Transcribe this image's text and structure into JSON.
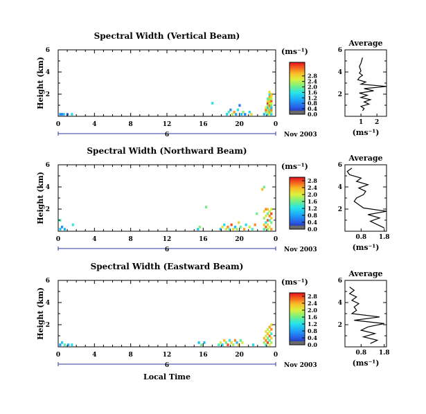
{
  "date_label": "Nov 2003",
  "bottom_xlabel": "Local Time",
  "colorbar_unit": "(ms⁻¹)",
  "chart_data": [
    {
      "type": "heatmap",
      "title": "Spectral Width (Vertical Beam)",
      "ylabel": "Height (km)",
      "xlabel": "",
      "xlim": [
        0,
        24
      ],
      "ylim": [
        0,
        6
      ],
      "xticks": [
        "0",
        "4",
        "8",
        "12",
        "16",
        "20",
        "0"
      ],
      "day_label": "6",
      "yticks": [
        "2",
        "4",
        "6"
      ],
      "colorbar": {
        "unit": "(ms⁻¹)",
        "range": [
          0,
          3.8
        ],
        "ticks": [
          "0.0",
          "0.4",
          "0.8",
          "1.2",
          "1.6",
          "2.0",
          "2.4",
          "2.8"
        ]
      },
      "profile": {
        "title": "Average",
        "xlabel": "(ms⁻¹)",
        "xlim": [
          0,
          2.6
        ],
        "xticks": [
          "1",
          "2"
        ],
        "yticks": [
          "2",
          "4",
          "6"
        ],
        "y": [
          0.5,
          0.7,
          0.9,
          1.1,
          1.3,
          1.5,
          1.7,
          1.9,
          2.1,
          2.3,
          2.5,
          2.7,
          2.9,
          3.1,
          3.3,
          3.5,
          3.7,
          3.9,
          4.1,
          4.5,
          4.8,
          5.3
        ],
        "x": [
          1.1,
          1.2,
          1.0,
          1.5,
          1.2,
          1.6,
          1.0,
          1.4,
          0.9,
          1.8,
          1.2,
          2.6,
          1.0,
          1.3,
          0.8,
          0.9,
          1.1,
          0.9,
          1.0,
          0.9,
          1.0,
          1.1
        ]
      },
      "cells": [
        [
          0.1,
          0.1,
          0.9
        ],
        [
          0.3,
          0.1,
          0.8
        ],
        [
          0.5,
          0.1,
          1.2
        ],
        [
          0.9,
          0.1,
          0.6
        ],
        [
          1.4,
          0.1,
          1.5
        ],
        [
          16.9,
          1.1,
          1.6
        ],
        [
          18.5,
          0.1,
          1.4
        ],
        [
          18.7,
          0.3,
          1.8
        ],
        [
          18.9,
          0.5,
          0.9
        ],
        [
          19.1,
          0.1,
          2.4
        ],
        [
          19.3,
          0.3,
          3.2
        ],
        [
          19.5,
          0.1,
          1.0
        ],
        [
          19.7,
          0.5,
          1.6
        ],
        [
          19.9,
          0.9,
          0.7
        ],
        [
          20.1,
          0.1,
          1.3
        ],
        [
          20.3,
          0.3,
          2.2
        ],
        [
          20.5,
          0.1,
          0.8
        ],
        [
          21.0,
          0.3,
          1.5
        ],
        [
          21.2,
          0.1,
          2.8
        ],
        [
          22.6,
          0.1,
          1.2
        ],
        [
          22.8,
          0.3,
          2.0
        ],
        [
          22.8,
          0.5,
          3.4
        ],
        [
          22.8,
          0.7,
          2.6
        ],
        [
          23.0,
          0.1,
          1.6
        ],
        [
          23.0,
          0.3,
          2.4
        ],
        [
          23.0,
          0.5,
          3.0
        ],
        [
          23.0,
          0.7,
          1.4
        ],
        [
          23.0,
          0.9,
          2.2
        ],
        [
          23.0,
          1.1,
          3.6
        ],
        [
          23.0,
          1.3,
          2.8
        ],
        [
          23.0,
          1.5,
          1.9
        ],
        [
          23.2,
          0.1,
          2.6
        ],
        [
          23.2,
          0.3,
          3.2
        ],
        [
          23.2,
          0.5,
          1.8
        ],
        [
          23.2,
          0.7,
          2.9
        ],
        [
          23.2,
          0.9,
          3.4
        ],
        [
          23.2,
          1.1,
          2.4
        ],
        [
          23.2,
          1.3,
          3.0
        ],
        [
          23.2,
          1.5,
          2.2
        ],
        [
          23.2,
          1.7,
          3.2
        ],
        [
          23.2,
          1.9,
          1.6
        ],
        [
          23.2,
          2.1,
          2.8
        ],
        [
          23.4,
          0.1,
          1.4
        ],
        [
          23.4,
          0.3,
          2.2
        ],
        [
          23.4,
          0.5,
          3.3
        ],
        [
          23.4,
          0.7,
          1.2
        ],
        [
          23.4,
          0.9,
          2.0
        ],
        [
          23.4,
          1.1,
          2.6
        ],
        [
          23.4,
          1.3,
          3.5
        ],
        [
          23.4,
          1.5,
          2.4
        ],
        [
          23.4,
          1.7,
          2.8
        ],
        [
          23.4,
          1.9,
          3.0
        ]
      ]
    },
    {
      "type": "heatmap",
      "title": "Spectral Width (Northward Beam)",
      "ylabel": "Height (km)",
      "xlabel": "",
      "xlim": [
        0,
        24
      ],
      "ylim": [
        0,
        6
      ],
      "xticks": [
        "0",
        "4",
        "8",
        "12",
        "16",
        "20",
        "0"
      ],
      "day_label": "6",
      "yticks": [
        "2",
        "4",
        "6"
      ],
      "colorbar": {
        "unit": "(ms⁻¹)",
        "range": [
          0,
          3.0
        ],
        "ticks": [
          "0.0",
          "0.4",
          "0.8",
          "1.2",
          "1.6",
          "2.0",
          "2.4",
          "2.8"
        ]
      },
      "profile": {
        "title": "Average",
        "xlabel": "(ms⁻¹)",
        "xlim": [
          0.1,
          1.9
        ],
        "xticks": [
          "0.8",
          "1.8"
        ],
        "yticks": [
          "2",
          "4",
          "6"
        ],
        "y": [
          0.3,
          0.6,
          0.9,
          1.2,
          1.5,
          1.8,
          2.1,
          2.4,
          2.7,
          3.0,
          3.3,
          3.6,
          3.9,
          4.2,
          4.5,
          4.8,
          5.1,
          5.4,
          5.7
        ],
        "x": [
          1.8,
          1.5,
          1.2,
          1.6,
          1.1,
          1.9,
          0.9,
          0.7,
          0.5,
          0.6,
          0.9,
          1.0,
          0.7,
          1.1,
          0.6,
          0.8,
          0.3,
          0.2,
          0.4
        ]
      },
      "cells": [
        [
          0.1,
          0.1,
          1.0
        ],
        [
          0.3,
          0.3,
          0.7
        ],
        [
          0.1,
          0.9,
          1.4
        ],
        [
          0.6,
          0.1,
          0.9
        ],
        [
          1.5,
          0.5,
          1.3
        ],
        [
          15.3,
          0.1,
          1.1
        ],
        [
          15.5,
          0.3,
          1.7
        ],
        [
          16.2,
          2.1,
          1.6
        ],
        [
          17.8,
          0.1,
          0.9
        ],
        [
          18.0,
          0.3,
          2.1
        ],
        [
          18.2,
          0.5,
          1.2
        ],
        [
          18.4,
          0.1,
          1.9
        ],
        [
          18.6,
          0.3,
          2.6
        ],
        [
          18.8,
          0.1,
          1.5
        ],
        [
          19.0,
          0.5,
          2.8
        ],
        [
          19.2,
          0.1,
          2.2
        ],
        [
          19.4,
          0.3,
          1.0
        ],
        [
          19.6,
          0.1,
          1.8
        ],
        [
          19.8,
          0.7,
          2.3
        ],
        [
          20.0,
          0.3,
          1.6
        ],
        [
          20.4,
          0.1,
          2.5
        ],
        [
          20.6,
          0.5,
          1.2
        ],
        [
          21.0,
          0.3,
          2.0
        ],
        [
          21.3,
          0.1,
          1.4
        ],
        [
          21.6,
          0.5,
          2.6
        ],
        [
          21.8,
          1.5,
          1.6
        ],
        [
          22.6,
          0.1,
          1.5
        ],
        [
          22.6,
          0.5,
          2.4
        ],
        [
          22.6,
          1.1,
          1.8
        ],
        [
          22.6,
          1.7,
          2.2
        ],
        [
          22.8,
          0.3,
          2.7
        ],
        [
          22.8,
          0.7,
          1.3
        ],
        [
          22.8,
          1.3,
          2.0
        ],
        [
          22.8,
          1.9,
          2.6
        ],
        [
          23.0,
          0.1,
          1.8
        ],
        [
          23.0,
          0.5,
          2.2
        ],
        [
          23.0,
          0.9,
          2.8
        ],
        [
          23.0,
          1.5,
          1.6
        ],
        [
          23.0,
          1.9,
          2.4
        ],
        [
          23.2,
          0.3,
          2.0
        ],
        [
          23.2,
          0.9,
          1.4
        ],
        [
          23.2,
          1.3,
          2.6
        ],
        [
          23.2,
          1.7,
          1.9
        ],
        [
          23.4,
          0.1,
          2.5
        ],
        [
          23.4,
          0.7,
          1.7
        ],
        [
          23.4,
          1.1,
          2.3
        ],
        [
          23.4,
          1.5,
          2.8
        ],
        [
          23.4,
          1.9,
          2.0
        ],
        [
          22.4,
          3.7,
          2.4
        ],
        [
          22.6,
          3.9,
          1.6
        ]
      ]
    },
    {
      "type": "heatmap",
      "title": "Spectral Width (Eastward Beam)",
      "ylabel": "Height (km)",
      "xlabel": "Local Time",
      "xlim": [
        0,
        24
      ],
      "ylim": [
        0,
        6
      ],
      "xticks": [
        "0",
        "4",
        "8",
        "12",
        "16",
        "20",
        "0"
      ],
      "day_label": "6",
      "yticks": [
        "2",
        "4",
        "6"
      ],
      "colorbar": {
        "unit": "(ms⁻¹)",
        "range": [
          0,
          3.0
        ],
        "ticks": [
          "0.0",
          "0.4",
          "0.8",
          "1.2",
          "1.6",
          "2.0",
          "2.4",
          "2.8"
        ]
      },
      "profile": {
        "title": "Average",
        "xlabel": "(ms⁻¹)",
        "xlim": [
          0.1,
          1.9
        ],
        "xticks": [
          "0.8",
          "1.8"
        ],
        "yticks": [
          "2",
          "4",
          "6"
        ],
        "y": [
          0.3,
          0.6,
          0.9,
          1.2,
          1.5,
          1.8,
          2.1,
          2.4,
          2.7,
          3.0,
          3.3,
          3.6,
          3.9,
          4.2,
          4.5,
          4.8,
          5.1,
          5.4
        ],
        "x": [
          1.2,
          1.5,
          0.9,
          1.4,
          0.8,
          1.1,
          1.8,
          0.5,
          1.6,
          0.4,
          0.6,
          0.5,
          0.7,
          0.4,
          0.6,
          0.3,
          0.5,
          0.3
        ]
      },
      "cells": [
        [
          0.1,
          0.1,
          0.8
        ],
        [
          0.3,
          0.3,
          1.1
        ],
        [
          0.6,
          0.1,
          1.5
        ],
        [
          1.0,
          0.1,
          0.9
        ],
        [
          1.4,
          0.1,
          1.2
        ],
        [
          15.4,
          0.3,
          1.0
        ],
        [
          15.7,
          0.1,
          1.6
        ],
        [
          16.0,
          0.3,
          0.9
        ],
        [
          17.6,
          0.1,
          1.4
        ],
        [
          17.8,
          0.3,
          2.0
        ],
        [
          18.0,
          0.1,
          1.1
        ],
        [
          18.2,
          0.5,
          2.4
        ],
        [
          18.4,
          0.3,
          1.6
        ],
        [
          18.6,
          0.1,
          2.8
        ],
        [
          18.8,
          0.5,
          1.3
        ],
        [
          19.0,
          0.3,
          2.2
        ],
        [
          19.2,
          0.1,
          1.8
        ],
        [
          19.4,
          0.5,
          2.6
        ],
        [
          19.6,
          0.3,
          1.0
        ],
        [
          19.8,
          0.1,
          2.3
        ],
        [
          20.0,
          0.5,
          1.5
        ],
        [
          20.2,
          0.3,
          2.0
        ],
        [
          21.4,
          0.1,
          1.2
        ],
        [
          22.6,
          0.3,
          1.8
        ],
        [
          22.6,
          0.7,
          2.4
        ],
        [
          22.8,
          0.1,
          1.4
        ],
        [
          22.8,
          0.5,
          2.6
        ],
        [
          22.8,
          0.9,
          1.9
        ],
        [
          22.8,
          1.3,
          2.2
        ],
        [
          23.0,
          0.3,
          2.8
        ],
        [
          23.0,
          0.7,
          1.6
        ],
        [
          23.0,
          1.1,
          2.4
        ],
        [
          23.0,
          1.5,
          1.9
        ],
        [
          23.2,
          0.1,
          2.1
        ],
        [
          23.2,
          0.5,
          1.5
        ],
        [
          23.2,
          0.9,
          2.7
        ],
        [
          23.2,
          1.3,
          2.0
        ],
        [
          23.2,
          1.7,
          2.5
        ],
        [
          23.4,
          0.3,
          1.8
        ],
        [
          23.4,
          0.7,
          2.3
        ],
        [
          23.4,
          1.1,
          1.4
        ],
        [
          23.4,
          1.5,
          2.6
        ],
        [
          23.4,
          1.9,
          2.2
        ]
      ]
    }
  ]
}
